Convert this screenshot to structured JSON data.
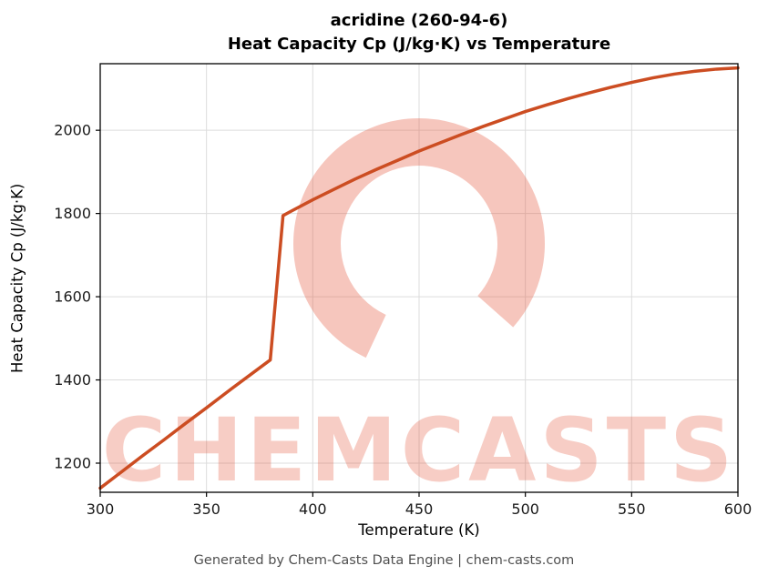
{
  "chart_data": {
    "type": "line",
    "title_line1": "acridine (260-94-6)",
    "title_line2": "Heat Capacity Cp (J/kg·K) vs Temperature",
    "xlabel": "Temperature (K)",
    "ylabel": "Heat Capacity Cp (J/kg·K)",
    "xlim": [
      300,
      600
    ],
    "ylim": [
      1130,
      2160
    ],
    "xticks": [
      300,
      350,
      400,
      450,
      500,
      550,
      600
    ],
    "yticks": [
      1200,
      1400,
      1600,
      1800,
      2000
    ],
    "grid": true,
    "legend": "none",
    "line_color": "#cc4d22",
    "line_width": 3.5,
    "series": [
      {
        "name": "Heat Capacity Cp",
        "x": [
          300,
          310,
          320,
          330,
          340,
          350,
          360,
          370,
          380,
          386,
          390,
          400,
          410,
          420,
          430,
          440,
          450,
          460,
          470,
          480,
          490,
          500,
          510,
          520,
          530,
          540,
          550,
          560,
          570,
          580,
          590,
          600
        ],
        "y": [
          1140,
          1179,
          1218,
          1256,
          1295,
          1333,
          1372,
          1410,
          1448,
          1795,
          1806,
          1833,
          1858,
          1883,
          1906,
          1928,
          1950,
          1970,
          1990,
          2009,
          2027,
          2045,
          2061,
          2076,
          2090,
          2103,
          2115,
          2126,
          2135,
          2142,
          2147,
          2150
        ]
      }
    ],
    "annotations": {
      "phase_jump_at_x": 383,
      "jump_from_y": 1448,
      "jump_to_y": 1795
    }
  },
  "watermark": {
    "text": "CHEMCASTS",
    "color": "rgba(228, 88, 62, 0.30)",
    "logo_color": "rgba(228, 88, 62, 0.34)"
  },
  "footer": {
    "text": "Generated by Chem-Casts Data Engine | chem-casts.com"
  }
}
